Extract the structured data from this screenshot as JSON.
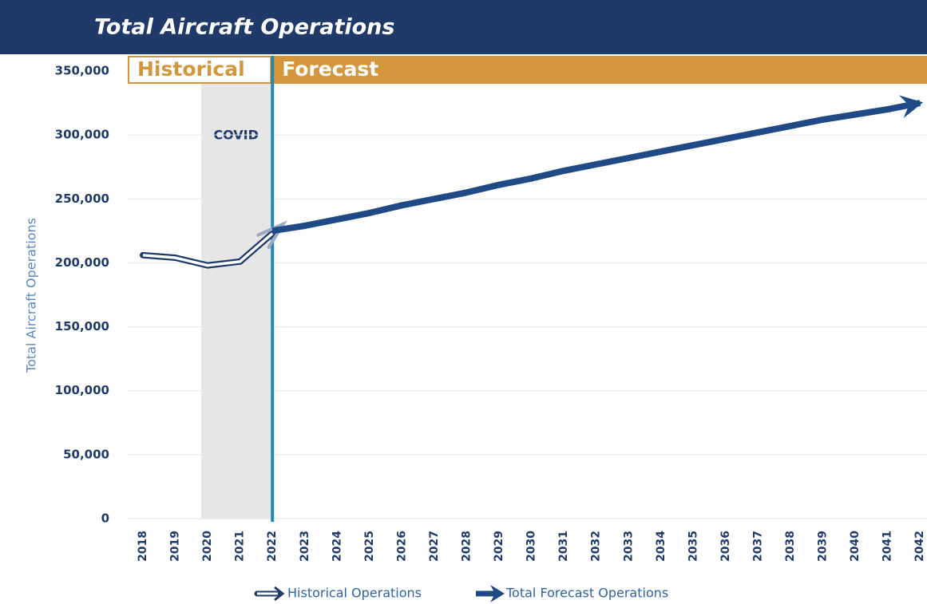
{
  "chart_data": {
    "type": "line",
    "title": "Total Aircraft Operations",
    "y_label": "Total Aircraft Operations",
    "historical_label": "Historical",
    "forecast_label": "Forecast",
    "covid_label": "COVID",
    "covid_span": [
      "2020",
      "2022"
    ],
    "forecast_start": "2022",
    "categories": [
      "2018",
      "2019",
      "2020",
      "2021",
      "2022",
      "2023",
      "2024",
      "2025",
      "2026",
      "2027",
      "2028",
      "2029",
      "2030",
      "2031",
      "2032",
      "2033",
      "2034",
      "2035",
      "2036",
      "2037",
      "2038",
      "2039",
      "2040",
      "2041",
      "2042"
    ],
    "series": [
      {
        "name": "Historical Operations",
        "color": "#1f3a68",
        "values": [
          206000,
          204000,
          198000,
          201000,
          223000,
          null,
          null,
          null,
          null,
          null,
          null,
          null,
          null,
          null,
          null,
          null,
          null,
          null,
          null,
          null,
          null,
          null,
          null,
          null,
          null
        ]
      },
      {
        "name": "Total Forecast Operations",
        "color": "#1f4a86",
        "values": [
          null,
          null,
          null,
          null,
          225000,
          229000,
          234000,
          239000,
          245000,
          250000,
          255000,
          261000,
          266000,
          272000,
          277000,
          282000,
          287000,
          292000,
          297000,
          302000,
          307000,
          312000,
          316000,
          320000,
          325000
        ]
      }
    ],
    "ylim": [
      0,
      350000
    ],
    "yticks": [
      {
        "value": 0,
        "label": "0"
      },
      {
        "value": 50000,
        "label": "50,000"
      },
      {
        "value": 100000,
        "label": "100,000"
      },
      {
        "value": 150000,
        "label": "150,000"
      },
      {
        "value": 200000,
        "label": "200,000"
      },
      {
        "value": 250000,
        "label": "250,000"
      },
      {
        "value": 300000,
        "label": "300,000"
      },
      {
        "value": 350000,
        "label": "350,000"
      }
    ],
    "grid": true
  }
}
